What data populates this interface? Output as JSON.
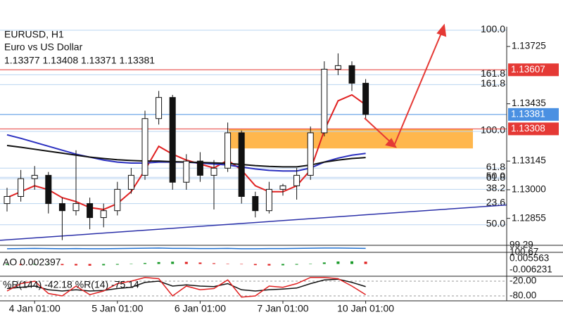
{
  "chart_data": {
    "type": "candlestick",
    "symbol": "EURUSD, H1",
    "description": "Euro vs US Dollar",
    "quote": "1.13377 1.13408 1.13371 1.13381",
    "categories": [
      null,
      null,
      "4 Jan 01:00",
      null,
      null,
      null,
      null,
      null,
      "5 Jan 01:00",
      null,
      null,
      null,
      null,
      null,
      "6 Jan 01:00",
      null,
      null,
      null,
      null,
      null,
      "7 Jan 01:00",
      null,
      null,
      null,
      null,
      null,
      "10 Jan 01:00"
    ],
    "open": [
      1.1293,
      1.12966,
      1.13056,
      1.13073,
      1.1293,
      1.12894,
      1.1293,
      1.12859,
      1.12894,
      1.13002,
      1.13073,
      1.1336,
      1.13467,
      1.13038,
      1.13145,
      1.13073,
      1.13109,
      1.13288,
      1.12966,
      1.12894,
      1.13002,
      1.1302,
      1.13073,
      1.13288,
      1.1361,
      1.13628,
      1.13539
    ],
    "high": [
      1.1301,
      1.131,
      1.1312,
      1.1309,
      1.1296,
      1.132,
      1.1296,
      1.1293,
      1.1304,
      1.1311,
      1.134,
      1.135,
      1.1348,
      1.1318,
      1.1319,
      1.1315,
      1.1334,
      1.133,
      1.1299,
      1.1304,
      1.1303,
      1.1311,
      1.1332,
      1.1365,
      1.1369,
      1.1365,
      1.1356
    ],
    "low": [
      1.1289,
      1.1294,
      1.13,
      1.1288,
      1.12745,
      1.1287,
      1.128,
      1.1281,
      1.1287,
      1.1298,
      1.1305,
      1.1333,
      1.13,
      1.13,
      1.1304,
      1.129,
      1.1309,
      1.1293,
      1.1286,
      1.1288,
      1.1297,
      1.1295,
      1.1305,
      1.1327,
      1.1358,
      1.135,
      1.1336
    ],
    "close": [
      1.12966,
      1.13056,
      1.13073,
      1.1293,
      1.12894,
      1.1293,
      1.12859,
      1.12894,
      1.13002,
      1.13073,
      1.1336,
      1.13467,
      1.13038,
      1.13145,
      1.13073,
      1.13109,
      1.13288,
      1.12966,
      1.12894,
      1.13002,
      1.1302,
      1.13073,
      1.13288,
      1.1361,
      1.13628,
      1.13539,
      1.13381
    ],
    "series": [
      {
        "color": "#e02020",
        "values": [
          1.1296,
          1.1299,
          1.1302,
          1.13,
          1.1296,
          1.1294,
          1.1291,
          1.129,
          1.1293,
          1.1299,
          1.131,
          1.1322,
          1.1318,
          1.1315,
          1.1313,
          1.1311,
          1.1315,
          1.131,
          1.1302,
          1.1299,
          1.1299,
          1.1302,
          1.131,
          1.133,
          1.1345,
          1.1348,
          1.1343
        ]
      },
      {
        "color": "#2a2fc0",
        "values": [
          1.13278,
          1.1326,
          1.1324,
          1.1322,
          1.132,
          1.1318,
          1.13165,
          1.1315,
          1.1314,
          1.13135,
          1.13135,
          1.1314,
          1.1314,
          1.1314,
          1.13135,
          1.1313,
          1.13125,
          1.13115,
          1.13105,
          1.13098,
          1.13095,
          1.13095,
          1.1311,
          1.1314,
          1.1316,
          1.13175,
          1.13184
        ]
      },
      {
        "color": "#111111",
        "values": [
          1.13224,
          1.13215,
          1.13205,
          1.13195,
          1.13185,
          1.13175,
          1.13165,
          1.13158,
          1.13152,
          1.13148,
          1.13145,
          1.13145,
          1.13142,
          1.1314,
          1.13138,
          1.13136,
          1.13133,
          1.13128,
          1.13122,
          1.13118,
          1.13116,
          1.13116,
          1.13125,
          1.1314,
          1.1315,
          1.13158,
          1.13163
        ]
      }
    ],
    "ylim": [
      1.12733,
      1.13825
    ],
    "yticks": [
      {
        "value": 1.13725,
        "label": "1.13725"
      },
      {
        "value": 1.13435,
        "label": "1.13435"
      },
      {
        "value": 1.13145,
        "label": "1.13145"
      },
      {
        "value": 1.13,
        "label": "1.13000"
      },
      {
        "value": 1.12855,
        "label": "1.12855"
      }
    ],
    "price_lines": [
      {
        "value": 1.13607,
        "label": "1.13607",
        "color": "#e53935"
      },
      {
        "value": 1.13381,
        "label": "1.13381",
        "color": "#4a90e2"
      },
      {
        "value": 1.13308,
        "label": "1.13308",
        "color": "#e53935"
      }
    ],
    "fib_levels": [
      {
        "label": "100.0",
        "price": 1.13807
      },
      {
        "label": "161.8",
        "price": 1.13582
      },
      {
        "label": "161.8",
        "price": 1.13532
      },
      {
        "label": "100.0",
        "price": 1.13295
      },
      {
        "label": "61.8",
        "price": 1.13109
      },
      {
        "label": "50.0",
        "price": 1.13063
      },
      {
        "label": "61.8",
        "price": 1.13056
      },
      {
        "label": "38.2",
        "price": 1.13002
      },
      {
        "label": "23.6",
        "price": 1.1293
      },
      {
        "label": "50.0",
        "price": 1.12823
      }
    ],
    "zone": {
      "top": 1.13308,
      "bottom": 1.13209,
      "color": "#ffb74d"
    },
    "trendline": {
      "start": 1.12744,
      "end": 1.12923,
      "color": "#2a2fa8"
    },
    "osc": {
      "color": "#1e6fd0",
      "ylim": [
        {
          "value": 99.29,
          "label": "99.29"
        },
        {
          "value": 100.67,
          "label": "100.67"
        }
      ],
      "values": [
        99.9,
        99.95,
        100.0,
        99.95,
        99.9,
        99.95,
        99.9,
        99.9,
        99.95,
        100.0,
        100.05,
        100.1,
        100.0,
        100.0,
        99.95,
        99.95,
        100.0,
        99.9,
        99.9,
        99.95,
        99.95,
        100.0,
        100.05,
        100.1,
        100.1,
        100.05,
        100.0
      ]
    },
    "ao": {
      "label": "AO 0.002397",
      "ylim": [
        {
          "value": -0.006231,
          "label": "-0.006231"
        },
        {
          "value": 0.005563,
          "label": "0.005563"
        }
      ],
      "up_color": "#1a9a2a",
      "down_color": "#e02020",
      "values": [
        -0.001,
        -0.0012,
        -0.0008,
        -0.0005,
        -0.0012,
        -0.0015,
        -0.0018,
        -0.0014,
        -0.0008,
        0.0002,
        0.001,
        0.002,
        0.0024,
        0.0022,
        0.0015,
        0.0008,
        0.0004,
        -0.0004,
        -0.0012,
        -0.0016,
        -0.0014,
        -0.0008,
        0.0004,
        0.0016,
        0.0026,
        0.0028,
        0.0024
      ]
    },
    "wpr": {
      "label": "%R(144) -42.18 %R(14) -75.14",
      "ylim": [
        -100,
        0
      ],
      "yticks": [
        {
          "value": -20,
          "label": "-20.00"
        },
        {
          "value": -80,
          "label": "-80.00"
        }
      ],
      "series": [
        {
          "color": "#111111",
          "values": [
            -50,
            -45,
            -40,
            -55,
            -60,
            -55,
            -60,
            -58,
            -50,
            -45,
            -25,
            -20,
            -40,
            -35,
            -40,
            -42,
            -30,
            -55,
            -60,
            -55,
            -52,
            -48,
            -30,
            -15,
            -12,
            -25,
            -42.18
          ]
        },
        {
          "color": "#e02020",
          "values": [
            -60,
            -30,
            -20,
            -70,
            -80,
            -40,
            -75,
            -60,
            -30,
            -20,
            -5,
            -10,
            -80,
            -40,
            -55,
            -50,
            -15,
            -85,
            -80,
            -40,
            -45,
            -30,
            -5,
            -5,
            -10,
            -40,
            -75.14
          ]
        }
      ]
    }
  }
}
